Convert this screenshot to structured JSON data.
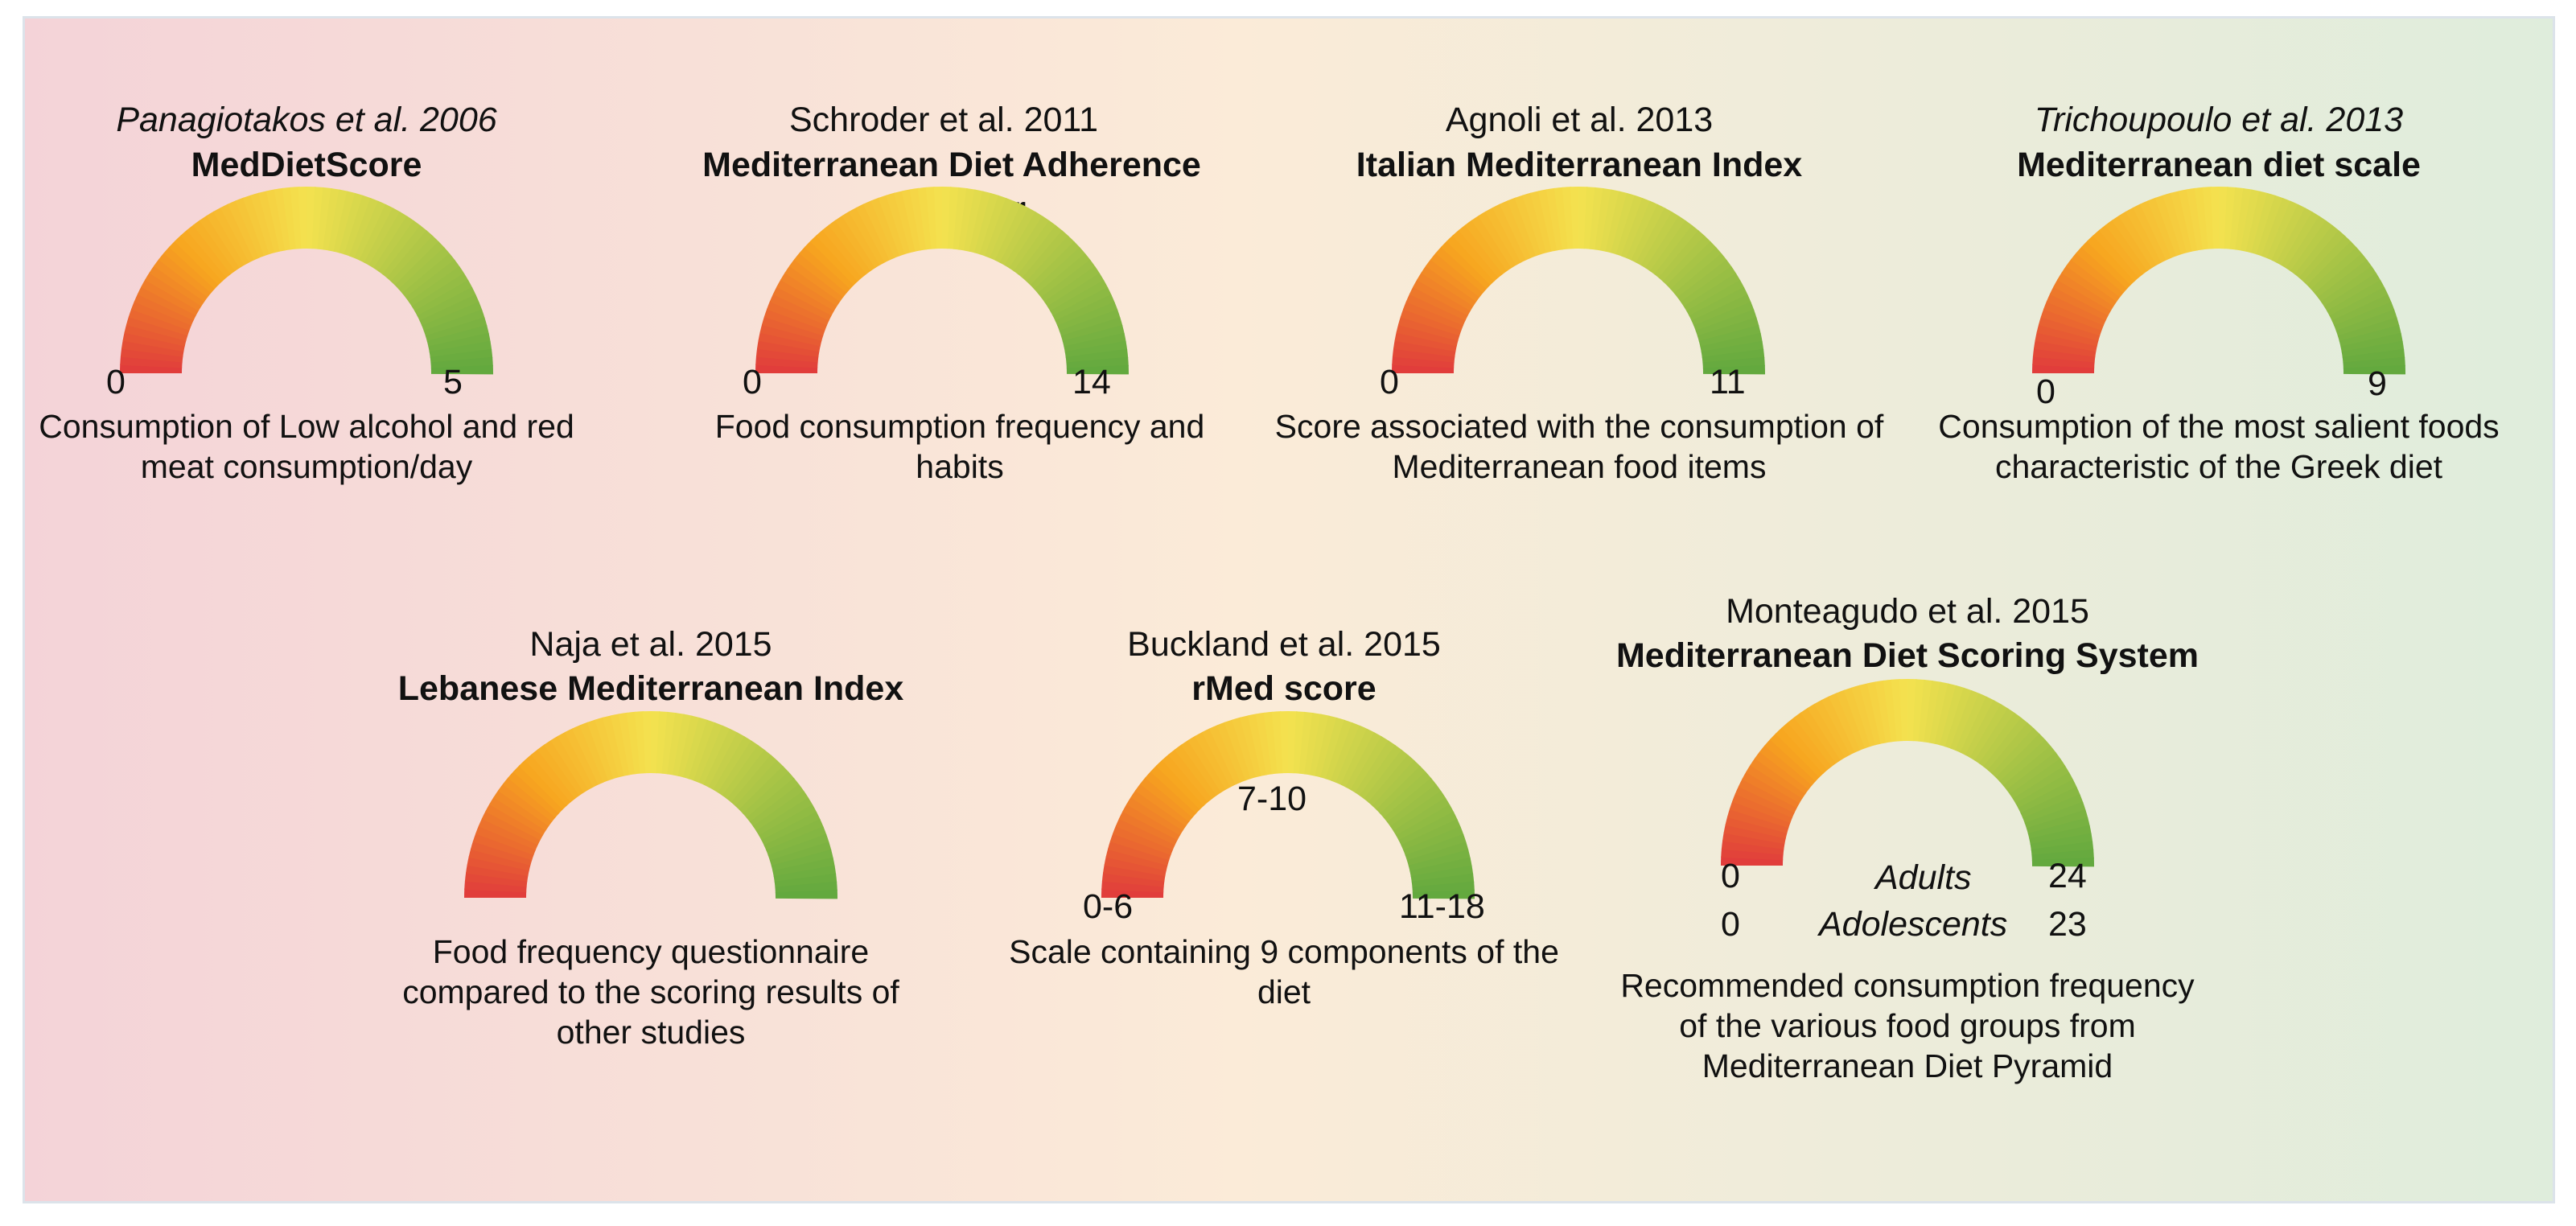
{
  "colors": {
    "background_left": "#f4d3d8",
    "background_middle": "#fbebd8",
    "background_right": "#dfeddc",
    "gauge_low": "#e03a3c",
    "gauge_mid_low": "#f7a51f",
    "gauge_mid": "#f4e24f",
    "gauge_high": "#61a83e"
  },
  "gauges": [
    {
      "citation": "Panagiotakos et al. 2006",
      "citation_italic": true,
      "name": "MedDietScore",
      "min": "0",
      "max": "5",
      "description": "Consumption of Low alcohol and red meat consumption/day"
    },
    {
      "citation": "Schroder et al. 2011",
      "citation_italic": false,
      "name": "Mediterranean Diet Adherence Screener",
      "min": "0",
      "max": "14",
      "description": "Food consumption frequency and habits"
    },
    {
      "citation": "Agnoli et al. 2013",
      "citation_italic": false,
      "name": "Italian Mediterranean Index",
      "min": "0",
      "max": "11",
      "description": "Score associated with the consumption of Mediterranean food items"
    },
    {
      "citation": "Trichoupoulo et al. 2013",
      "citation_italic": true,
      "name": "Mediterranean diet scale",
      "min": "0",
      "max": "9",
      "description": "Consumption of the most salient foods characteristic of the Greek diet"
    },
    {
      "citation": "Naja et al. 2015",
      "citation_italic": false,
      "name": "Lebanese Mediterranean Index",
      "description": "Food frequency questionnaire compared to the scoring results of other studies"
    },
    {
      "citation": "Buckland et al. 2015",
      "citation_italic": false,
      "name": "rMed score",
      "min": "0-6",
      "mid": "7-10",
      "max": "11-18",
      "description": "Scale containing 9 components of the diet"
    },
    {
      "citation": "Monteagudo et al. 2015",
      "citation_italic": false,
      "name": "Mediterranean Diet Scoring System",
      "groups": [
        {
          "label": "Adults",
          "min": "0",
          "max": "24"
        },
        {
          "label": "Adolescents",
          "min": "0",
          "max": "23"
        }
      ],
      "description": "Recommended consumption frequency of the various food groups from Mediterranean Diet Pyramid"
    }
  ]
}
